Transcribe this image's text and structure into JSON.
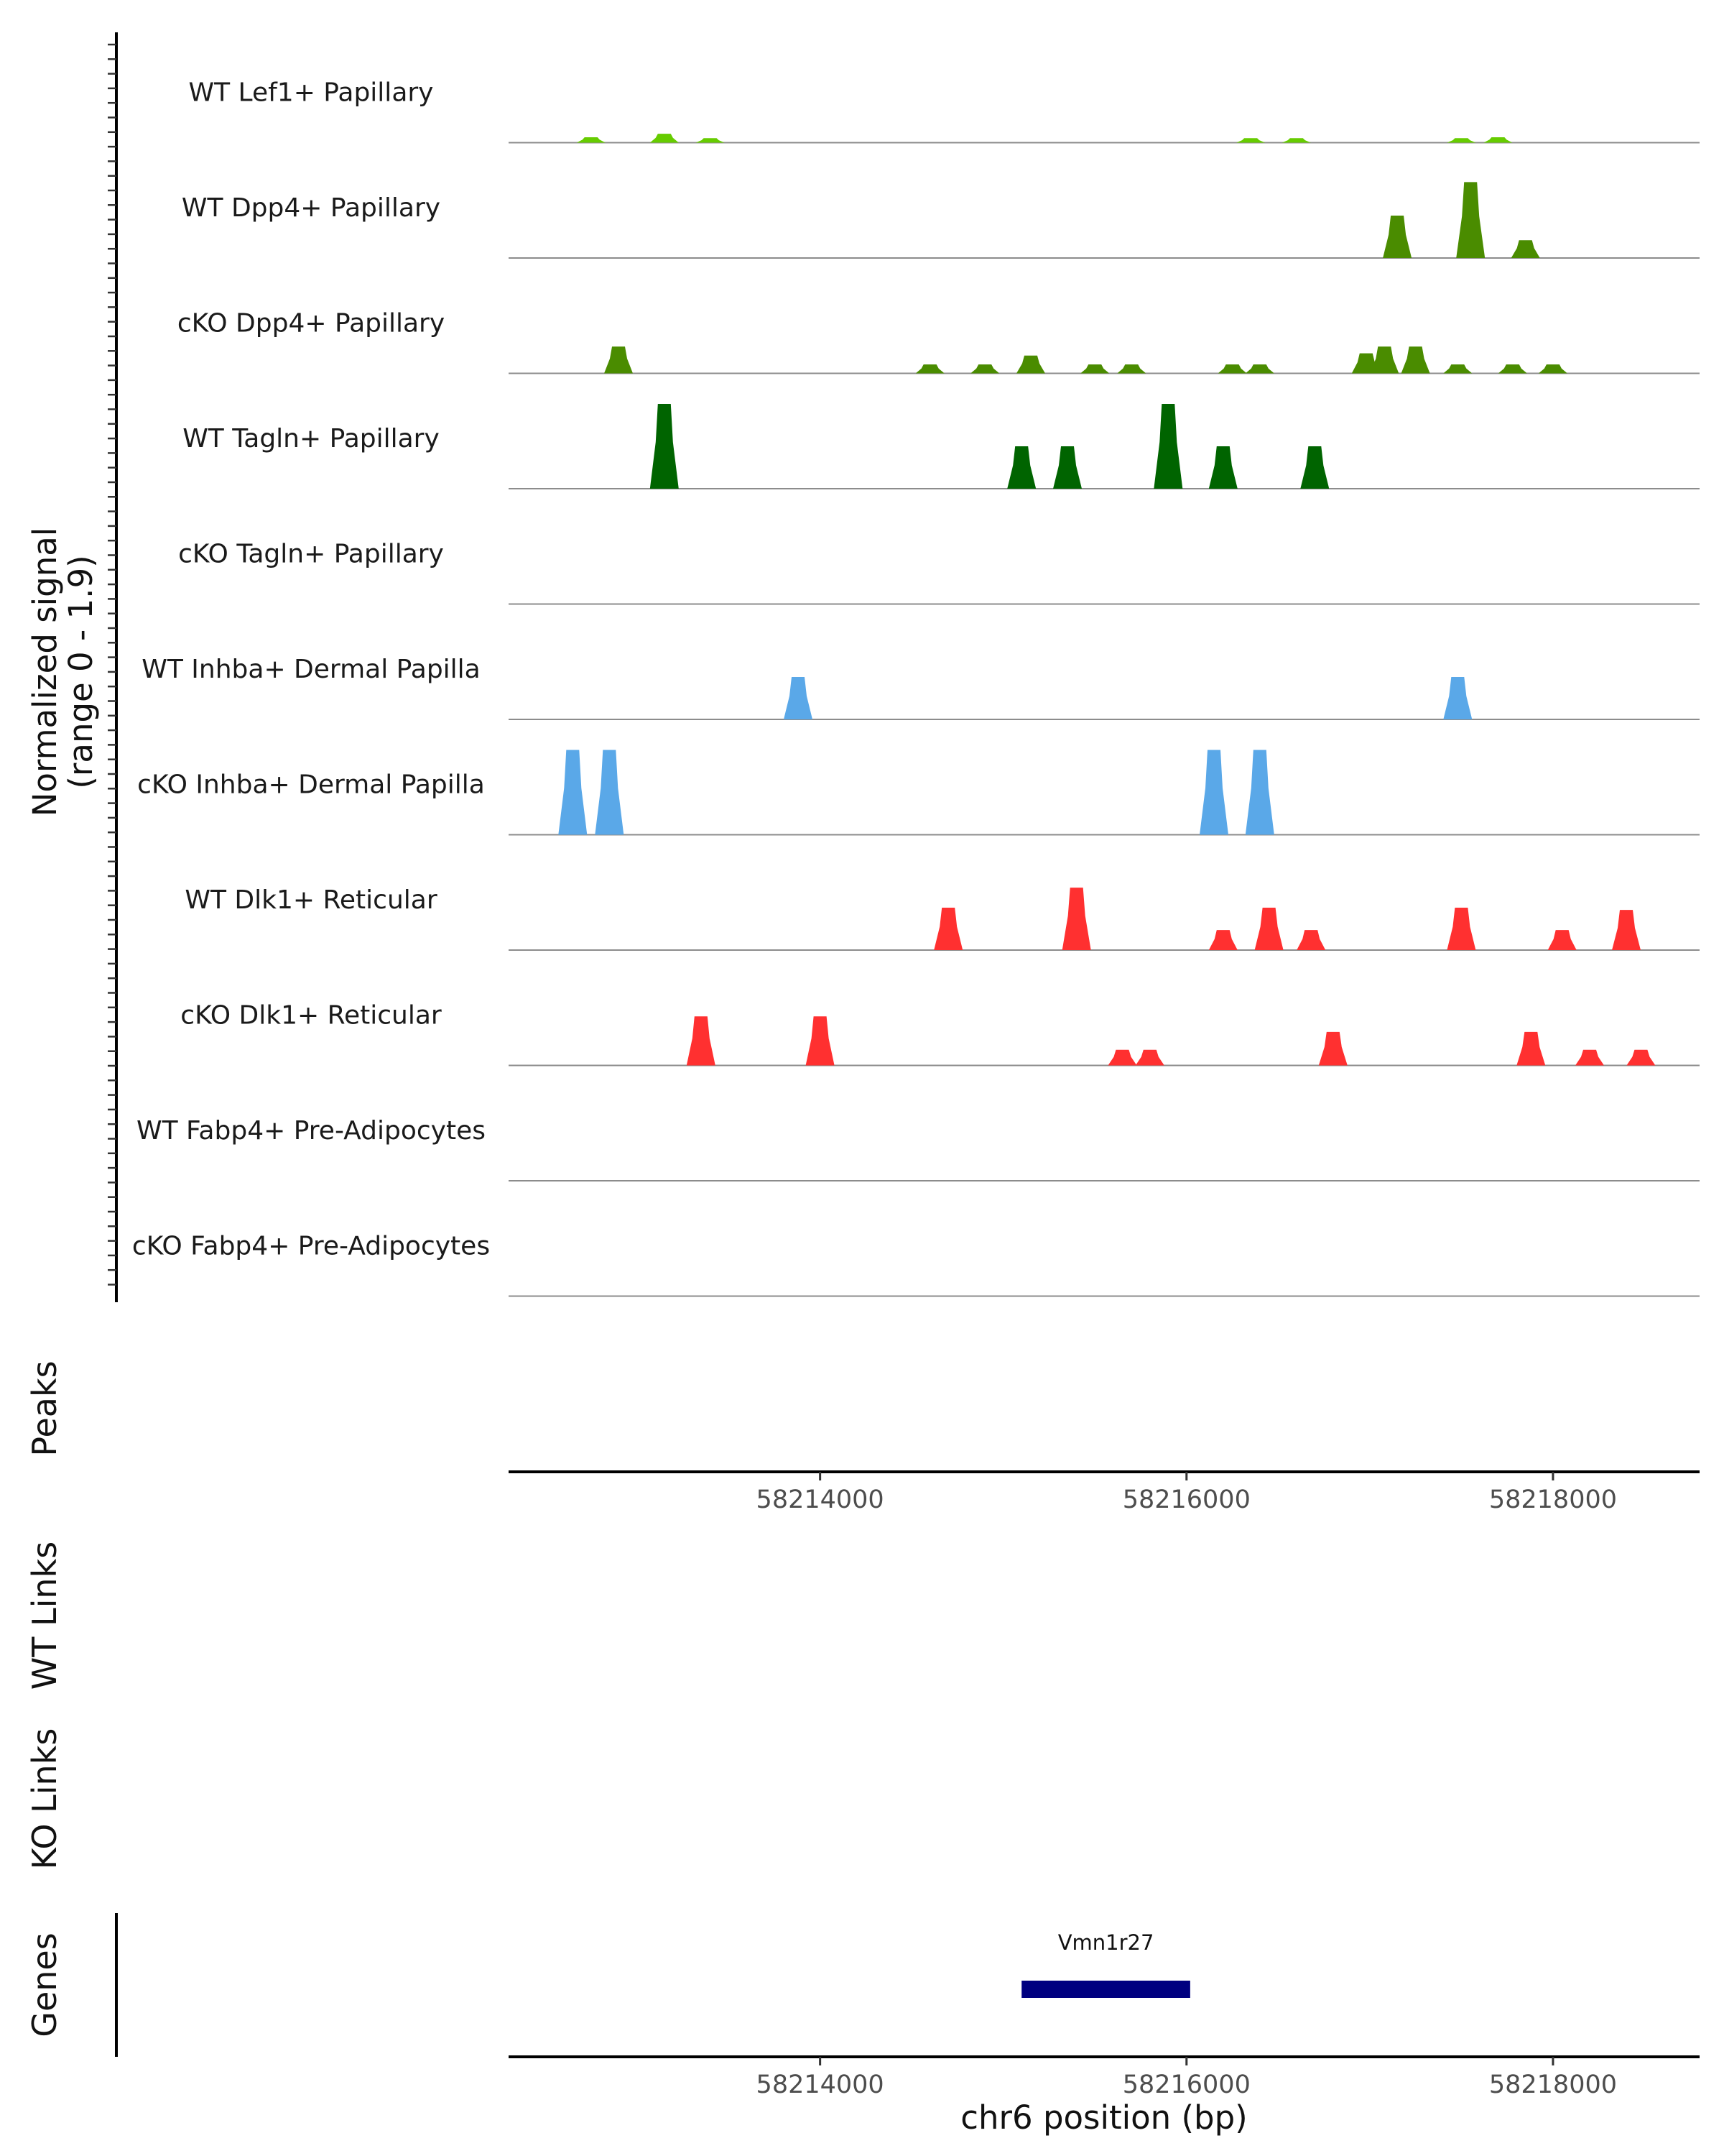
{
  "chart_data": {
    "type": "area",
    "y_axis_title_line1": "Normalized signal",
    "y_axis_title_line2": "(range 0 - 1.9)",
    "ylim": [
      0,
      1.9
    ],
    "x_axis_title": "chr6 position (bp)",
    "xlim": [
      58212300,
      58218800
    ],
    "x_ticks": [
      {
        "value": 58214000,
        "label": "58214000"
      },
      {
        "value": 58216000,
        "label": "58216000"
      },
      {
        "value": 58218000,
        "label": "58218000"
      }
    ],
    "panel_titles": {
      "peaks": "Peaks",
      "wt_links": "WT Links",
      "ko_links": "KO Links",
      "genes": "Genes"
    },
    "tracks": [
      {
        "name": "WT Lef1+ Papillary",
        "color": "#66cc00",
        "peaks": [
          [
            58212750,
            0.12
          ],
          [
            58213150,
            0.2
          ],
          [
            58213400,
            0.1
          ],
          [
            58216350,
            0.1
          ],
          [
            58216600,
            0.1
          ],
          [
            58217500,
            0.1
          ],
          [
            58217700,
            0.12
          ]
        ]
      },
      {
        "name": "WT Dpp4+ Papillary",
        "color": "#4a8c00",
        "peaks": [
          [
            58217150,
            0.95
          ],
          [
            58217550,
            1.7
          ],
          [
            58217850,
            0.4
          ]
        ]
      },
      {
        "name": "cKO Dpp4+ Papillary",
        "color": "#4a8c00",
        "peaks": [
          [
            58212900,
            0.6
          ],
          [
            58214600,
            0.2
          ],
          [
            58214900,
            0.2
          ],
          [
            58215150,
            0.4
          ],
          [
            58215500,
            0.2
          ],
          [
            58215700,
            0.2
          ],
          [
            58216250,
            0.2
          ],
          [
            58216400,
            0.2
          ],
          [
            58216980,
            0.45
          ],
          [
            58217080,
            0.6
          ],
          [
            58217250,
            0.6
          ],
          [
            58217480,
            0.2
          ],
          [
            58217780,
            0.2
          ],
          [
            58218000,
            0.2
          ]
        ]
      },
      {
        "name": "WT Tagln+ Papillary",
        "color": "#006400",
        "peaks": [
          [
            58213150,
            1.9
          ],
          [
            58215100,
            0.95
          ],
          [
            58215350,
            0.95
          ],
          [
            58215900,
            1.9
          ],
          [
            58216200,
            0.95
          ],
          [
            58216700,
            0.95
          ]
        ]
      },
      {
        "name": "cKO Tagln+ Papillary",
        "color": "#006400",
        "peaks": []
      },
      {
        "name": "WT Inhba+ Dermal Papilla",
        "color": "#5aa8e8",
        "peaks": [
          [
            58213880,
            0.95
          ],
          [
            58217480,
            0.95
          ]
        ]
      },
      {
        "name": "cKO Inhba+ Dermal Papilla",
        "color": "#5aa8e8",
        "peaks": [
          [
            58212650,
            1.9
          ],
          [
            58212850,
            1.9
          ],
          [
            58216150,
            1.9
          ],
          [
            58216400,
            1.9
          ]
        ]
      },
      {
        "name": "WT Dlk1+ Reticular",
        "color": "#ff3030",
        "peaks": [
          [
            58214700,
            0.95
          ],
          [
            58215400,
            1.4
          ],
          [
            58216200,
            0.45
          ],
          [
            58216450,
            0.95
          ],
          [
            58216680,
            0.45
          ],
          [
            58217500,
            0.95
          ],
          [
            58218050,
            0.45
          ],
          [
            58218400,
            0.9
          ]
        ]
      },
      {
        "name": "cKO Dlk1+ Reticular",
        "color": "#ff3030",
        "peaks": [
          [
            58213350,
            1.1
          ],
          [
            58214000,
            1.1
          ],
          [
            58215650,
            0.35
          ],
          [
            58215800,
            0.35
          ],
          [
            58216800,
            0.75
          ],
          [
            58217880,
            0.75
          ],
          [
            58218200,
            0.35
          ],
          [
            58218480,
            0.35
          ]
        ]
      },
      {
        "name": "WT Fabp4+ Pre-Adipocytes",
        "color": "#333333",
        "peaks": []
      },
      {
        "name": "cKO Fabp4+ Pre-Adipocytes",
        "color": "#333333",
        "peaks": []
      }
    ],
    "genes": [
      {
        "name": "Vmn1r27",
        "start": 58215100,
        "end": 58216020,
        "color": "#000080"
      }
    ]
  }
}
